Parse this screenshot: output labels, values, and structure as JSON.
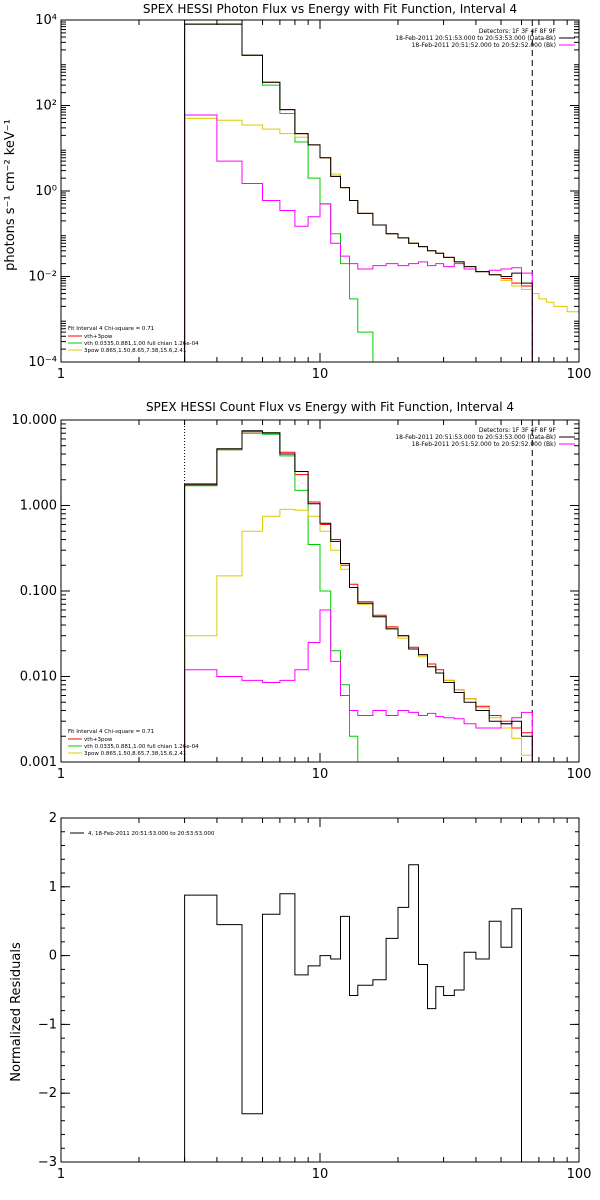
{
  "colors": {
    "data": "#000000",
    "fit_total": "#ff0000",
    "vth": "#00cc00",
    "3pow": "#ddcc00",
    "background": "#ff00ff"
  },
  "chart_data": [
    {
      "type": "line",
      "title": "SPEX HESSI Photon Flux vs Energy with Fit Function, Interval 4",
      "ylabel": "photons s⁻¹ cm⁻² keV⁻¹",
      "x_scale": "log",
      "y_scale": "log",
      "xlim": [
        1,
        100
      ],
      "ylim": [
        0.0001,
        10000
      ],
      "x_tick_labels": [
        "1",
        "10",
        "100"
      ],
      "y_tick_labels": [
        "10⁴",
        "10²",
        "10⁰",
        "10⁻²",
        "10⁻⁴"
      ],
      "right_labels": [
        "Detectors: 1F 3F 4F 8F 9F",
        "18-Feb-2011 20:51:53.000 to 20:53:53.000 (Data-Bk)",
        "18-Feb-2011 20:51:52.000 to 20:52:52.000 (Bk)"
      ],
      "left_labels": [
        "Fit Interval 4   Chi-square = 0.71",
        "vth+3pow",
        "vth 0.0335,0.881,1.00  full chian 1.26e-04",
        "3pow 0.865,1.50,8.65,7.38,15.6,2.41"
      ],
      "fit_range": [
        3,
        66
      ],
      "series": [
        {
          "color": "fit_total",
          "edges": [
            3,
            4,
            5,
            6,
            7,
            8,
            9,
            10,
            11,
            12,
            13,
            14,
            16,
            18,
            20,
            22,
            24,
            26,
            28,
            30,
            33,
            36,
            40,
            45,
            50,
            55,
            60,
            66
          ],
          "values": [
            8000,
            8000,
            1500,
            350,
            80,
            22,
            12,
            6,
            2.2,
            1.2,
            0.6,
            0.3,
            0.16,
            0.1,
            0.08,
            0.06,
            0.05,
            0.04,
            0.035,
            0.028,
            0.022,
            0.017,
            0.013,
            0.011,
            0.009,
            0.007,
            0.006
          ]
        },
        {
          "color": "vth",
          "edges": [
            3,
            4,
            5,
            6,
            7,
            8,
            9,
            10,
            11,
            12,
            13,
            14,
            16,
            17
          ],
          "values": [
            8000,
            8000,
            1500,
            300,
            65,
            14,
            2,
            0.5,
            0.1,
            0.02,
            0.003,
            0.0005,
            0.0001
          ]
        },
        {
          "color": "3pow",
          "edges": [
            3,
            4,
            5,
            6,
            7,
            8,
            9,
            10,
            11,
            12,
            13,
            14,
            16,
            18,
            20,
            22,
            24,
            26,
            28,
            30,
            33,
            36,
            40,
            45,
            50,
            55,
            60,
            66,
            70,
            75,
            80,
            90,
            100
          ],
          "values": [
            50,
            45,
            35,
            28,
            22,
            18,
            12,
            6,
            2.5,
            1.2,
            0.6,
            0.3,
            0.16,
            0.1,
            0.08,
            0.06,
            0.05,
            0.04,
            0.035,
            0.028,
            0.022,
            0.017,
            0.013,
            0.011,
            0.008,
            0.006,
            0.005,
            0.004,
            0.003,
            0.0025,
            0.002,
            0.0015
          ]
        },
        {
          "color": "background",
          "edges": [
            3,
            4,
            5,
            6,
            7,
            8,
            9,
            10,
            11,
            12,
            13,
            14,
            16,
            18,
            20,
            22,
            24,
            26,
            28,
            30,
            33,
            36,
            40,
            45,
            50,
            55,
            60,
            66
          ],
          "values": [
            60,
            5,
            1.5,
            0.6,
            0.35,
            0.15,
            0.25,
            0.5,
            0.06,
            0.03,
            0.02,
            0.015,
            0.018,
            0.02,
            0.018,
            0.02,
            0.022,
            0.018,
            0.02,
            0.017,
            0.02,
            0.015,
            0.013,
            0.014,
            0.015,
            0.016,
            0.012
          ]
        },
        {
          "color": "data",
          "edges": [
            3,
            4,
            5,
            6,
            7,
            8,
            9,
            10,
            11,
            12,
            13,
            14,
            16,
            18,
            20,
            22,
            24,
            26,
            28,
            30,
            33,
            36,
            40,
            45,
            50,
            55,
            60,
            66
          ],
          "values": [
            8000,
            8000,
            1500,
            350,
            80,
            22,
            12,
            6,
            2.2,
            1.2,
            0.6,
            0.3,
            0.16,
            0.1,
            0.08,
            0.06,
            0.05,
            0.04,
            0.035,
            0.028,
            0.022,
            0.017,
            0.013,
            0.011,
            0.01,
            0.012,
            0.007
          ]
        }
      ]
    },
    {
      "type": "line",
      "title": "SPEX HESSI Count Flux vs Energy with Fit Function, Interval 4",
      "x_scale": "log",
      "y_scale": "log",
      "xlim": [
        1,
        100
      ],
      "ylim": [
        0.001,
        10
      ],
      "x_tick_labels": [
        "1",
        "10",
        "100"
      ],
      "y_tick_labels": [
        "10.000",
        "1.000",
        "0.100",
        "0.010",
        "0.001"
      ],
      "right_labels": [
        "Detectors: 1F 3F 4F 8F 9F",
        "18-Feb-2011 20:51:53.000 to 20:53:53.000 (Data-Bk)",
        "18-Feb-2011 20:51:52.000 to 20:52:52.000 (Bk)"
      ],
      "left_labels": [
        "Fit Interval 4   Chi-square = 0.71",
        "vth+3pow",
        "vth 0.0335,0.881,1.00  full chian 1.26e-04",
        "3pow 0.865,1.50,8.65,7.38,15.6,2.41"
      ],
      "fit_range": [
        3,
        66
      ],
      "series": [
        {
          "color": "fit_total",
          "edges": [
            3,
            4,
            5,
            6,
            7,
            8,
            9,
            10,
            11,
            12,
            13,
            14,
            16,
            18,
            20,
            22,
            24,
            26,
            28,
            30,
            33,
            36,
            40,
            45,
            50,
            55,
            60,
            66
          ],
          "values": [
            1.8,
            4.5,
            7.3,
            7,
            4.2,
            2.3,
            1.1,
            0.6,
            0.4,
            0.2,
            0.12,
            0.075,
            0.052,
            0.038,
            0.03,
            0.022,
            0.018,
            0.014,
            0.012,
            0.009,
            0.007,
            0.0055,
            0.0045,
            0.0035,
            0.003,
            0.0025,
            0.0022
          ]
        },
        {
          "color": "vth",
          "edges": [
            3,
            4,
            5,
            6,
            7,
            8,
            9,
            10,
            11,
            12,
            13,
            14
          ],
          "values": [
            1.7,
            4.5,
            7.0,
            6.8,
            3.8,
            1.5,
            0.35,
            0.1,
            0.02,
            0.008,
            0.002
          ]
        },
        {
          "color": "3pow",
          "edges": [
            3,
            4,
            5,
            6,
            7,
            8,
            9,
            10,
            11,
            12,
            13,
            14,
            16,
            18,
            20,
            22,
            24,
            26,
            28,
            30,
            33,
            36,
            40,
            45,
            50,
            55,
            60,
            66
          ],
          "values": [
            0.03,
            0.15,
            0.5,
            0.75,
            0.9,
            0.88,
            0.75,
            0.5,
            0.3,
            0.18,
            0.11,
            0.07,
            0.05,
            0.037,
            0.028,
            0.021,
            0.017,
            0.013,
            0.011,
            0.009,
            0.007,
            0.0055,
            0.0043,
            0.0033,
            0.0025,
            0.0019,
            0.0012
          ]
        },
        {
          "color": "background",
          "edges": [
            3,
            4,
            5,
            6,
            7,
            8,
            9,
            10,
            11,
            12,
            13,
            14,
            16,
            18,
            20,
            22,
            24,
            26,
            28,
            30,
            33,
            36,
            40,
            45,
            50,
            55,
            60,
            66
          ],
          "values": [
            0.012,
            0.01,
            0.009,
            0.0085,
            0.009,
            0.012,
            0.025,
            0.06,
            0.015,
            0.006,
            0.004,
            0.0035,
            0.004,
            0.0035,
            0.004,
            0.0038,
            0.0035,
            0.0037,
            0.0034,
            0.0033,
            0.0032,
            0.0028,
            0.0025,
            0.0025,
            0.0028,
            0.0033,
            0.0038
          ]
        },
        {
          "color": "data",
          "edges": [
            3,
            4,
            5,
            6,
            7,
            8,
            9,
            10,
            11,
            12,
            13,
            14,
            16,
            18,
            20,
            22,
            24,
            26,
            28,
            30,
            33,
            36,
            40,
            45,
            50,
            55,
            60,
            66
          ],
          "values": [
            1.75,
            4.6,
            7.5,
            7.1,
            4,
            2.5,
            1.05,
            0.62,
            0.38,
            0.21,
            0.11,
            0.072,
            0.05,
            0.036,
            0.03,
            0.021,
            0.018,
            0.013,
            0.011,
            0.0085,
            0.0065,
            0.005,
            0.004,
            0.003,
            0.0028,
            0.003,
            0.002
          ]
        }
      ]
    },
    {
      "type": "line",
      "ylabel": "Normalized Residuals",
      "x_scale": "log",
      "y_scale": "linear",
      "xlim": [
        1,
        100
      ],
      "ylim": [
        -3,
        2
      ],
      "x_tick_labels": [
        "1",
        "10",
        "100"
      ],
      "y_tick_labels": [
        "2",
        "1",
        "0",
        "−1",
        "−2",
        "−3"
      ],
      "legend": "4, 18-Feb-2011 20:51:53.000 to 20:53:53.000",
      "series": [
        {
          "color": "data",
          "edges": [
            3,
            4,
            5,
            6,
            7,
            8,
            9,
            10,
            11,
            12,
            13,
            14,
            16,
            18,
            20,
            22,
            24,
            26,
            28,
            30,
            33,
            36,
            40,
            45,
            50,
            55,
            60,
            66
          ],
          "values": [
            0.88,
            0.45,
            -2.3,
            0.6,
            0.9,
            -0.28,
            -0.15,
            0.0,
            -0.05,
            0.57,
            -0.58,
            -0.43,
            -0.35,
            0.25,
            0.7,
            1.32,
            -0.13,
            -0.77,
            -0.45,
            -0.58,
            -0.5,
            0.05,
            -0.05,
            0.5,
            0.12,
            0.68,
            -3
          ]
        }
      ]
    }
  ]
}
